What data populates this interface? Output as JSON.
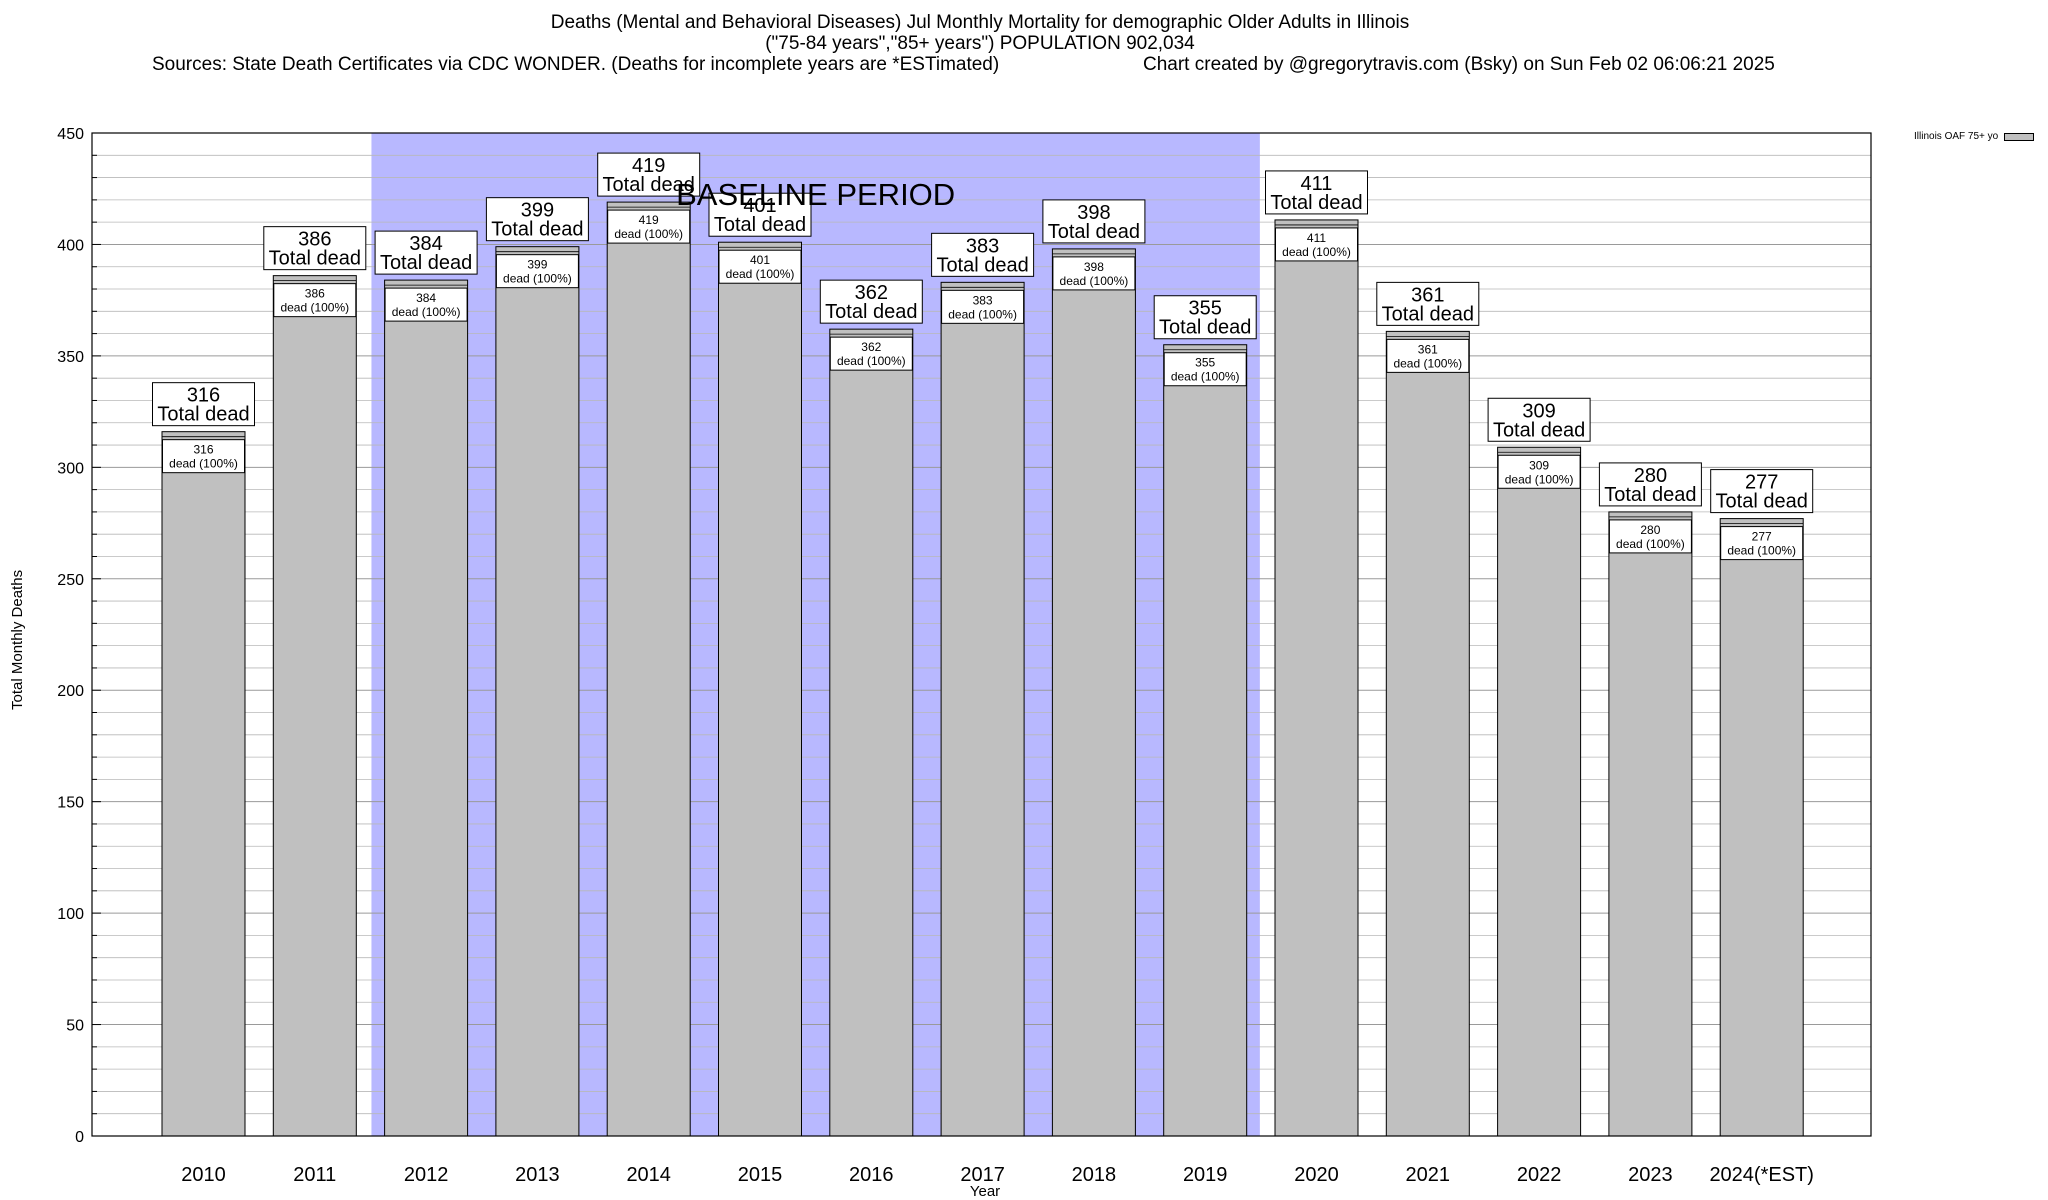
{
  "chart_data": {
    "type": "bar",
    "title": "Deaths (Mental and Behavioral Diseases) Jul Monthly Mortality for demographic Older Adults in Illinois",
    "subtitle": "(\"75-84 years\",\"85+ years\") POPULATION 902,034",
    "sources": "Sources: State Death Certificates via CDC WONDER. (Deaths for incomplete years are *ESTimated)",
    "credit": "Chart created by @gregorytravis.com (Bsky) on Sun Feb 02 06:06:21 2025",
    "xlabel": "Year",
    "ylabel": "Total Monthly Deaths",
    "ylim": [
      0,
      450
    ],
    "y_ticks": [
      0,
      50,
      100,
      150,
      200,
      250,
      300,
      350,
      400,
      450
    ],
    "categories": [
      "2010",
      "2011",
      "2012",
      "2013",
      "2014",
      "2015",
      "2016",
      "2017",
      "2018",
      "2019",
      "2020",
      "2021",
      "2022",
      "2023",
      "2024(*EST)"
    ],
    "series": [
      {
        "name": "Illinois OAF 75+ yo",
        "values": [
          316,
          386,
          384,
          399,
          419,
          401,
          362,
          383,
          398,
          355,
          411,
          361,
          309,
          280,
          277
        ]
      }
    ],
    "baseline": {
      "label": "BASELINE PERIOD",
      "start": "2012",
      "end": "2019",
      "color": "#b8b8ff"
    },
    "outer_label_suffix": "Total dead",
    "inner_label_suffix": "dead (100%)",
    "bar_color": "#c0c0c0",
    "grid": true,
    "legend_position": "top-right"
  }
}
